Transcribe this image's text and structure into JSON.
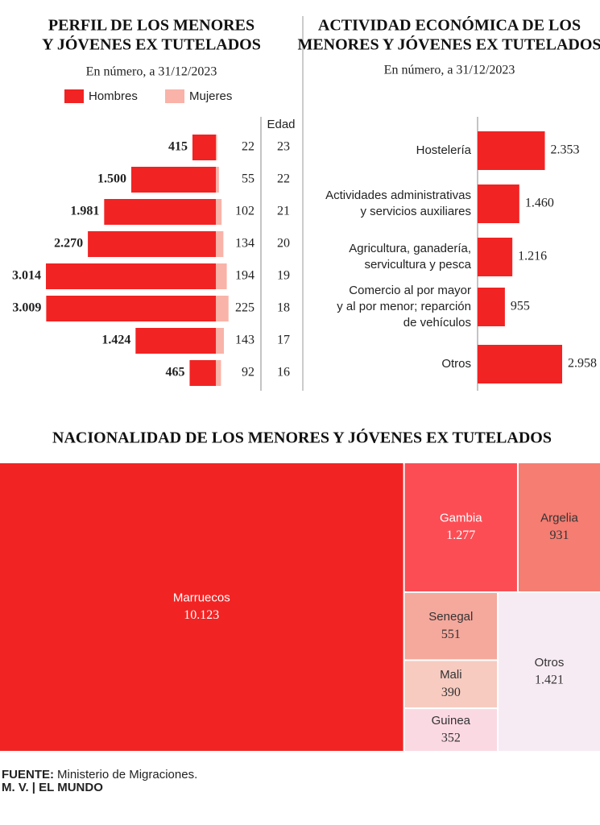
{
  "chart_data": [
    {
      "type": "pyramid",
      "title": [
        "PERFIL DE LOS MENORES",
        "Y JÓVENES EX TUTELADOS"
      ],
      "subtitle": "En número, a 31/12/2023",
      "axis_label": "Edad",
      "categories": [
        "23",
        "22",
        "21",
        "20",
        "19",
        "18",
        "17",
        "16"
      ],
      "series": [
        {
          "name": "Hombres",
          "color": "#f22323",
          "values": [
            415,
            1500,
            1981,
            2270,
            3014,
            3009,
            1424,
            465
          ],
          "value_labels": [
            "415",
            "1.500",
            "1.981",
            "2.270",
            "3.014",
            "3.009",
            "1.424",
            "465"
          ]
        },
        {
          "name": "Mujeres",
          "color": "#f9b3a8",
          "values": [
            22,
            55,
            102,
            134,
            194,
            225,
            143,
            92
          ]
        }
      ]
    },
    {
      "type": "hbar",
      "title": [
        "ACTIVIDAD ECONÓMICA DE LOS",
        "MENORES  Y JÓVENES EX TUTELADOS"
      ],
      "subtitle": "En número, a 31/12/2023",
      "categories": [
        [
          "Hostelería"
        ],
        [
          "Actividades administrativas",
          "y servicios auxiliares"
        ],
        [
          "Agricultura, ganadería,",
          "servicultura y pesca"
        ],
        [
          "Comercio al por mayor",
          "y al por menor; reparción",
          "de vehículos"
        ],
        [
          "Otros"
        ]
      ],
      "values": [
        2353,
        1460,
        1216,
        955,
        2958
      ],
      "value_labels": [
        "2.353",
        "1.460",
        "1.216",
        "955",
        "2.958"
      ],
      "color": "#f22323"
    },
    {
      "type": "treemap",
      "title": "NACIONALIDAD DE LOS MENORES Y JÓVENES EX TUTELADOS",
      "categories": [
        "Marruecos",
        "Gambia",
        "Argelia",
        "Senegal",
        "Mali",
        "Guinea",
        "Otros"
      ],
      "values": [
        10123,
        1277,
        931,
        551,
        390,
        352,
        1421
      ],
      "value_labels": [
        "10.123",
        "1.277",
        "931",
        "551",
        "390",
        "352",
        "1.421"
      ],
      "colors": [
        "#f22323",
        "#fc4d55",
        "#f57d72",
        "#f5a89c",
        "#f7cbc0",
        "#fbd9e3",
        "#f7ebf3"
      ]
    }
  ],
  "source_label": "FUENTE:",
  "source": "Ministerio de Migraciones.",
  "credit": "M. V. | EL MUNDO"
}
